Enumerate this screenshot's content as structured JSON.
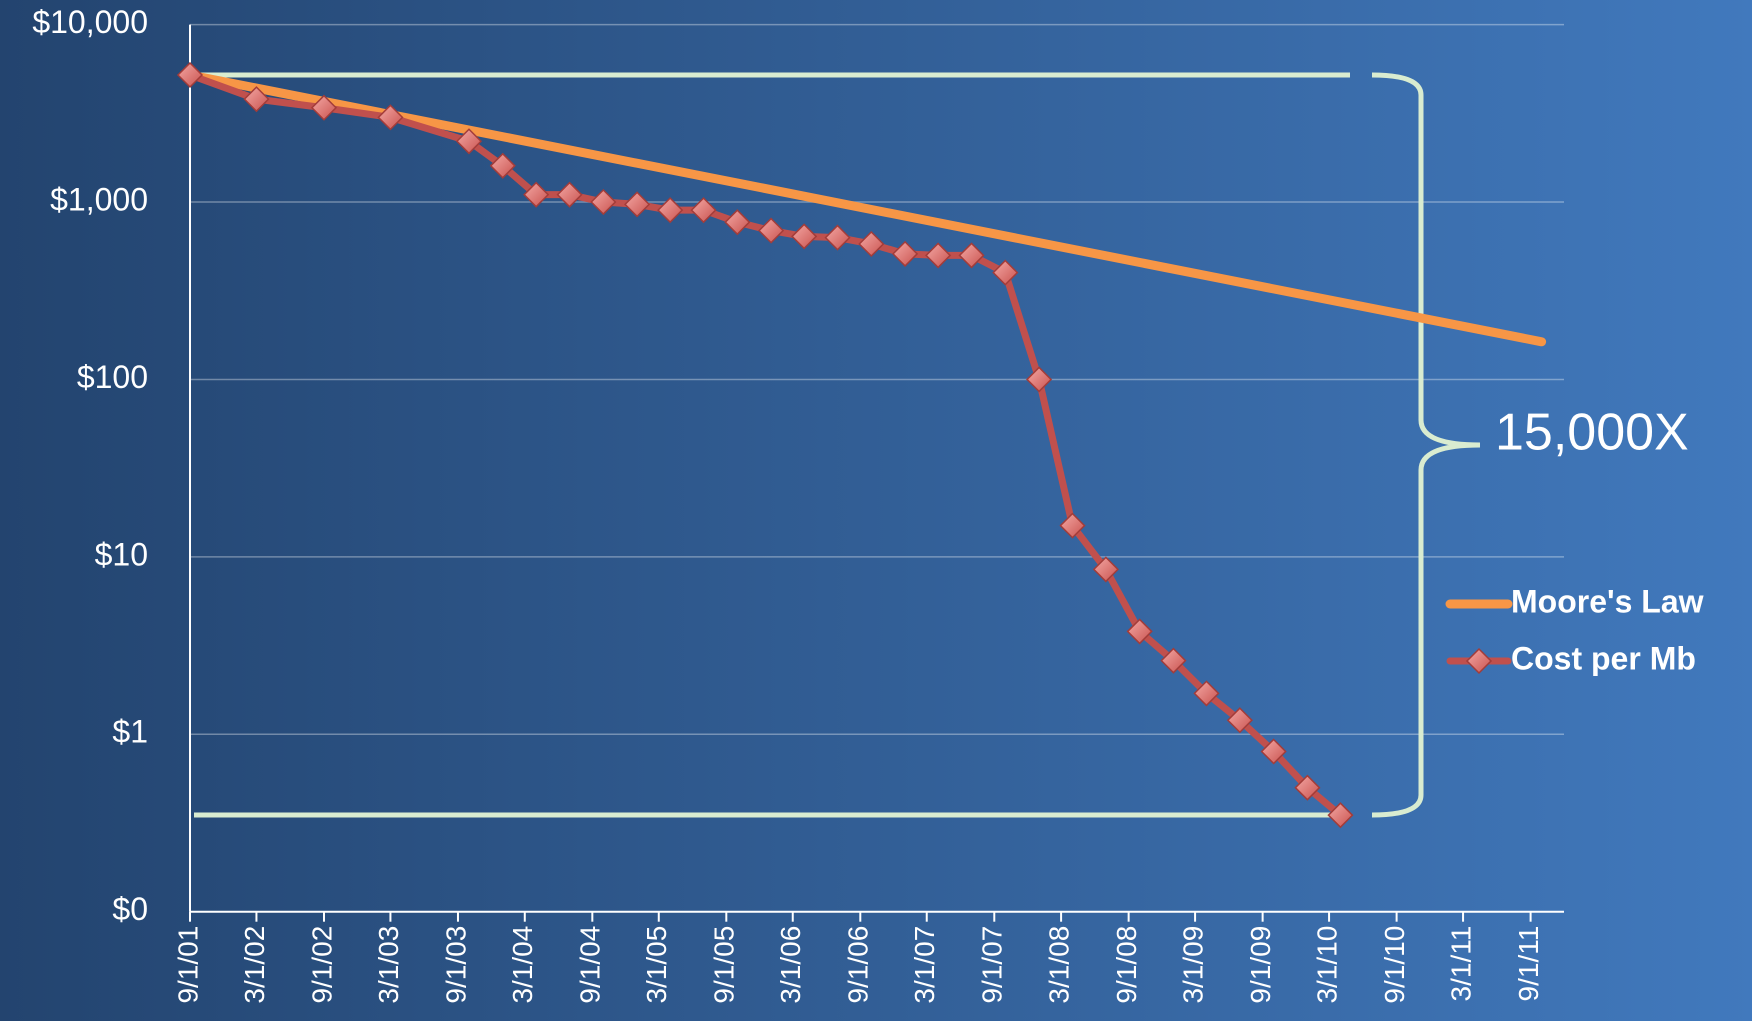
{
  "chart_data": {
    "type": "line",
    "y_scale": "log",
    "grid": true,
    "legend": "right",
    "annotations": [
      "15,000X"
    ],
    "xlim": [
      "2001-09-01",
      "2011-12-01"
    ],
    "xticks": [
      {
        "value": "2001-09-01",
        "label": "9/1/01"
      },
      {
        "value": "2002-03-01",
        "label": "3/1/02"
      },
      {
        "value": "2002-09-01",
        "label": "9/1/02"
      },
      {
        "value": "2003-03-01",
        "label": "3/1/03"
      },
      {
        "value": "2003-09-01",
        "label": "9/1/03"
      },
      {
        "value": "2004-03-01",
        "label": "3/1/04"
      },
      {
        "value": "2004-09-01",
        "label": "9/1/04"
      },
      {
        "value": "2005-03-01",
        "label": "3/1/05"
      },
      {
        "value": "2005-09-01",
        "label": "9/1/05"
      },
      {
        "value": "2006-03-01",
        "label": "3/1/06"
      },
      {
        "value": "2006-09-01",
        "label": "9/1/06"
      },
      {
        "value": "2007-03-01",
        "label": "3/1/07"
      },
      {
        "value": "2007-09-01",
        "label": "9/1/07"
      },
      {
        "value": "2008-03-01",
        "label": "3/1/08"
      },
      {
        "value": "2008-09-01",
        "label": "9/1/08"
      },
      {
        "value": "2009-03-01",
        "label": "3/1/09"
      },
      {
        "value": "2009-09-01",
        "label": "9/1/09"
      },
      {
        "value": "2010-03-01",
        "label": "3/1/10"
      },
      {
        "value": "2010-09-01",
        "label": "9/1/10"
      },
      {
        "value": "2011-03-01",
        "label": "3/1/11"
      },
      {
        "value": "2011-09-01",
        "label": "9/1/11"
      }
    ],
    "ylim": [
      0.1,
      10000
    ],
    "yticks": [
      {
        "value": 0.1,
        "label": "$0"
      },
      {
        "value": 1,
        "label": "$1"
      },
      {
        "value": 10,
        "label": "$10"
      },
      {
        "value": 100,
        "label": "$100"
      },
      {
        "value": 1000,
        "label": "$1,000"
      },
      {
        "value": 10000,
        "label": "$10,000"
      }
    ],
    "series": [
      {
        "name": "Moore's Law",
        "color": "#f79646",
        "marker": false,
        "x": [
          "2001-09-01",
          "2011-10-01"
        ],
        "values": [
          5200,
          163
        ]
      },
      {
        "name": "Cost per Mb",
        "color": "#c0504d",
        "marker": true,
        "x": [
          "2001-09-01",
          "2002-03-01",
          "2002-09-01",
          "2003-03-01",
          "2003-10-01",
          "2004-01-01",
          "2004-04-01",
          "2004-07-01",
          "2004-10-01",
          "2005-01-01",
          "2005-04-01",
          "2005-07-01",
          "2005-10-01",
          "2006-01-01",
          "2006-04-01",
          "2006-07-01",
          "2006-10-01",
          "2007-01-01",
          "2007-04-01",
          "2007-07-01",
          "2007-10-01",
          "2008-01-01",
          "2008-04-01",
          "2008-07-01",
          "2008-10-01",
          "2009-01-01",
          "2009-04-01",
          "2009-07-01",
          "2009-10-01",
          "2010-01-01",
          "2010-04-01"
        ],
        "values": [
          5200,
          3800,
          3400,
          3000,
          2200,
          1600,
          1100,
          1100,
          1000,
          970,
          900,
          900,
          770,
          690,
          640,
          630,
          580,
          510,
          500,
          500,
          400,
          100,
          15,
          8.5,
          3.8,
          2.6,
          1.7,
          1.2,
          0.8,
          0.5,
          0.35
        ]
      }
    ]
  }
}
